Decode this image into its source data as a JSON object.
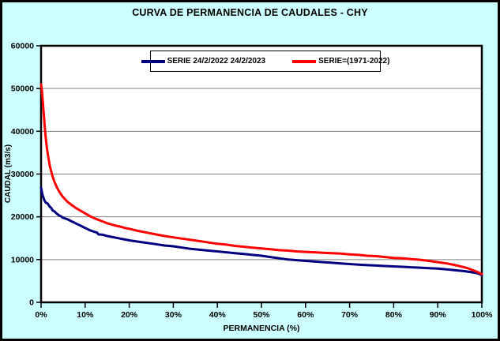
{
  "window": {
    "background_color": "#CCFFFF",
    "border_color": "#000000",
    "plot_background": "#FFFFFF",
    "gridline_color": "#808080"
  },
  "title": "CURVA DE PERMANENCIA DE CAUDALES - CHY",
  "legend": {
    "position": "top-center",
    "items": [
      {
        "label": "SERIE 24/2/2022 24/2/2023",
        "color": "#000080"
      },
      {
        "label": "SERIE=(1971-2022)",
        "color": "#FF0000"
      }
    ]
  },
  "chart_data": {
    "type": "line",
    "title": "CURVA DE PERMANENCIA DE CAUDALES - CHY",
    "xlabel": "PERMANENCIA (%)",
    "ylabel": "CAUDAL (m3/s)",
    "xlim": [
      0,
      100
    ],
    "ylim": [
      0,
      60000
    ],
    "x_tick_labels": [
      "0%",
      "10%",
      "20%",
      "30%",
      "40%",
      "50%",
      "60%",
      "70%",
      "80%",
      "90%",
      "100%"
    ],
    "x_tick_values": [
      0,
      10,
      20,
      30,
      40,
      50,
      60,
      70,
      80,
      90,
      100
    ],
    "y_tick_labels": [
      "0",
      "10000",
      "20000",
      "30000",
      "40000",
      "50000",
      "60000"
    ],
    "y_tick_values": [
      0,
      10000,
      20000,
      30000,
      40000,
      50000,
      60000
    ],
    "grid": "horizontal",
    "legend_position": "top-center",
    "series": [
      {
        "name": "SERIE 24/2/2022 24/2/2023",
        "color": "#000080",
        "points": [
          [
            0,
            26800
          ],
          [
            0.3,
            25200
          ],
          [
            0.7,
            24000
          ],
          [
            1,
            23400
          ],
          [
            1.5,
            23100
          ],
          [
            2,
            22300
          ],
          [
            2.3,
            22100
          ],
          [
            2.6,
            21500
          ],
          [
            3,
            21300
          ],
          [
            3.6,
            20700
          ],
          [
            4,
            20400
          ],
          [
            4.5,
            20100
          ],
          [
            5,
            19800
          ],
          [
            6,
            19400
          ],
          [
            7,
            18900
          ],
          [
            8,
            18400
          ],
          [
            9,
            17900
          ],
          [
            10,
            17400
          ],
          [
            11,
            16900
          ],
          [
            12,
            16500
          ],
          [
            12.7,
            16300
          ],
          [
            13,
            15900
          ],
          [
            14,
            15800
          ],
          [
            15,
            15500
          ],
          [
            16,
            15300
          ],
          [
            17,
            15100
          ],
          [
            18,
            14900
          ],
          [
            19,
            14700
          ],
          [
            20,
            14500
          ],
          [
            22,
            14200
          ],
          [
            24,
            13900
          ],
          [
            26,
            13600
          ],
          [
            28,
            13300
          ],
          [
            30,
            13100
          ],
          [
            32,
            12800
          ],
          [
            34,
            12500
          ],
          [
            36,
            12300
          ],
          [
            38,
            12100
          ],
          [
            40,
            11900
          ],
          [
            42,
            11700
          ],
          [
            44,
            11500
          ],
          [
            46,
            11300
          ],
          [
            48,
            11100
          ],
          [
            50,
            10900
          ],
          [
            52,
            10600
          ],
          [
            54,
            10300
          ],
          [
            56,
            10000
          ],
          [
            57,
            9950
          ],
          [
            58,
            9850
          ],
          [
            60,
            9700
          ],
          [
            62,
            9550
          ],
          [
            64,
            9400
          ],
          [
            66,
            9250
          ],
          [
            68,
            9100
          ],
          [
            70,
            8950
          ],
          [
            72,
            8800
          ],
          [
            74,
            8700
          ],
          [
            76,
            8600
          ],
          [
            78,
            8500
          ],
          [
            80,
            8400
          ],
          [
            82,
            8300
          ],
          [
            84,
            8200
          ],
          [
            86,
            8100
          ],
          [
            88,
            8000
          ],
          [
            90,
            7900
          ],
          [
            92,
            7700
          ],
          [
            94,
            7500
          ],
          [
            96,
            7300
          ],
          [
            98,
            7000
          ],
          [
            99,
            6800
          ],
          [
            100,
            6400
          ]
        ]
      },
      {
        "name": "SERIE=(1971-2022)",
        "color": "#FF0000",
        "points": [
          [
            0,
            51000
          ],
          [
            0.2,
            49500
          ],
          [
            0.5,
            45500
          ],
          [
            0.8,
            41500
          ],
          [
            1,
            39000
          ],
          [
            1.3,
            36200
          ],
          [
            1.6,
            34200
          ],
          [
            2,
            31800
          ],
          [
            2.5,
            29800
          ],
          [
            3,
            28300
          ],
          [
            3.5,
            27100
          ],
          [
            4,
            26100
          ],
          [
            4.5,
            25300
          ],
          [
            5,
            24600
          ],
          [
            6,
            23500
          ],
          [
            7,
            22700
          ],
          [
            8,
            22000
          ],
          [
            9,
            21400
          ],
          [
            10,
            20800
          ],
          [
            11,
            20200
          ],
          [
            12,
            19700
          ],
          [
            13,
            19300
          ],
          [
            14,
            18900
          ],
          [
            15,
            18500
          ],
          [
            16,
            18200
          ],
          [
            17,
            17900
          ],
          [
            18,
            17700
          ],
          [
            19,
            17400
          ],
          [
            20,
            17200
          ],
          [
            22,
            16700
          ],
          [
            24,
            16300
          ],
          [
            26,
            15900
          ],
          [
            28,
            15500
          ],
          [
            30,
            15200
          ],
          [
            32,
            14900
          ],
          [
            34,
            14600
          ],
          [
            36,
            14300
          ],
          [
            38,
            14000
          ],
          [
            40,
            13700
          ],
          [
            42,
            13500
          ],
          [
            44,
            13200
          ],
          [
            46,
            13000
          ],
          [
            48,
            12800
          ],
          [
            50,
            12600
          ],
          [
            52,
            12400
          ],
          [
            54,
            12200
          ],
          [
            56,
            12100
          ],
          [
            58,
            11900
          ],
          [
            60,
            11800
          ],
          [
            62,
            11700
          ],
          [
            64,
            11600
          ],
          [
            66,
            11500
          ],
          [
            68,
            11400
          ],
          [
            70,
            11200
          ],
          [
            72,
            11100
          ],
          [
            74,
            10900
          ],
          [
            76,
            10800
          ],
          [
            78,
            10600
          ],
          [
            80,
            10400
          ],
          [
            82,
            10300
          ],
          [
            84,
            10100
          ],
          [
            86,
            9950
          ],
          [
            88,
            9700
          ],
          [
            90,
            9400
          ],
          [
            92,
            9100
          ],
          [
            94,
            8700
          ],
          [
            96,
            8200
          ],
          [
            97,
            7900
          ],
          [
            98,
            7500
          ],
          [
            99,
            7100
          ],
          [
            100,
            6600
          ]
        ]
      }
    ]
  }
}
